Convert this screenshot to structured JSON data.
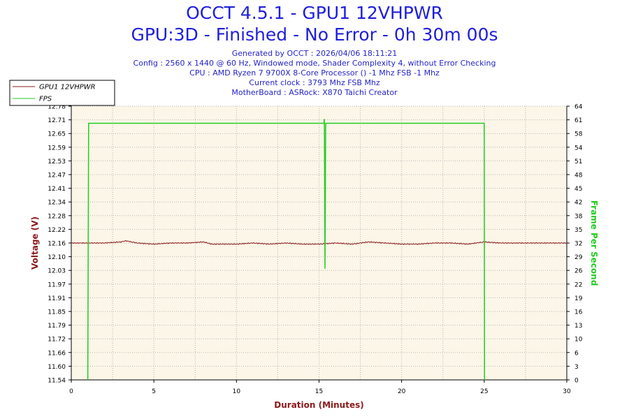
{
  "header": {
    "title": "OCCT 4.5.1 - GPU1 12VHPWR",
    "subtitle": "GPU:3D - Finished - No Error - 0h 30m 00s",
    "info": [
      "Generated by OCCT : 2026/04/06 18:11:21",
      "Config : 2560 x 1440 @ 60 Hz, Windowed mode, Shader Complexity 4, without Error Checking",
      "CPU : AMD Ryzen 7 9700X 8-Core Processor () -1 Mhz FSB -1 Mhz",
      "Current clock : 3793 Mhz FSB  Mhz",
      "MotherBoard : ASRock: X870 Taichi Creator"
    ]
  },
  "colors": {
    "voltage": "#8b1a1a",
    "fps": "#22cc22",
    "plot_bg": "#fcf6e8",
    "grid": "#b4b4b4",
    "title": "#1e1edc"
  },
  "chart_data": {
    "type": "line",
    "xlabel": "Duration (Minutes)",
    "ylabel": "Voltage (V)",
    "y2label": "Frame Per Second",
    "xlim": [
      0,
      30
    ],
    "ylim": [
      11.54,
      12.78
    ],
    "y2lim": [
      0,
      64
    ],
    "x_ticks": [
      "0",
      "5",
      "10",
      "15",
      "20",
      "25",
      "30"
    ],
    "y_ticks": [
      "11.54",
      "11.60",
      "11.66",
      "11.72",
      "11.79",
      "11.85",
      "11.91",
      "11.97",
      "12.03",
      "12.10",
      "12.16",
      "12.22",
      "12.28",
      "12.34",
      "12.41",
      "12.47",
      "12.53",
      "12.59",
      "12.65",
      "12.71",
      "12.78"
    ],
    "y2_ticks": [
      "0",
      "3",
      "6",
      "10",
      "13",
      "16",
      "19",
      "22",
      "26",
      "29",
      "32",
      "35",
      "38",
      "42",
      "45",
      "48",
      "51",
      "54",
      "58",
      "61",
      "64"
    ],
    "legend_position": "top-left",
    "grid": true,
    "series": [
      {
        "name": "GPU1 12VHPWR",
        "axis": "left",
        "x": [
          0,
          1,
          2,
          3,
          3.3,
          4,
          5,
          6,
          7,
          8,
          8.5,
          9,
          10,
          11,
          12,
          13,
          14,
          15,
          16,
          17,
          18,
          19,
          20,
          21,
          22,
          23,
          24,
          25,
          26,
          27,
          28,
          29,
          30
        ],
        "values": [
          12.16,
          12.16,
          12.16,
          12.165,
          12.17,
          12.16,
          12.155,
          12.16,
          12.16,
          12.165,
          12.155,
          12.155,
          12.155,
          12.16,
          12.155,
          12.16,
          12.155,
          12.155,
          12.16,
          12.155,
          12.165,
          12.16,
          12.155,
          12.155,
          12.16,
          12.16,
          12.155,
          12.165,
          12.16,
          12.16,
          12.16,
          12.16,
          12.16
        ]
      },
      {
        "name": "FPS",
        "axis": "right",
        "x": [
          1.0,
          1.05,
          1.1,
          15.3,
          15.32,
          15.36,
          15.4,
          15.45,
          25.0,
          25.02
        ],
        "values": [
          0,
          60,
          60,
          60,
          61,
          26,
          60,
          60,
          60,
          0
        ]
      }
    ]
  }
}
